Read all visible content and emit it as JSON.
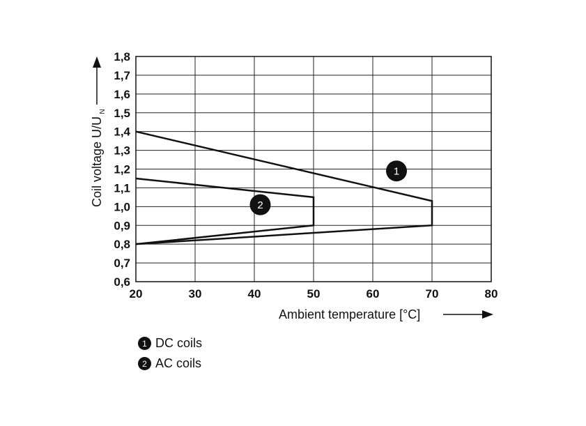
{
  "chart_data": {
    "type": "line",
    "xlabel": "Ambient temperature [°C]",
    "ylabel_main": "Coil voltage U/U",
    "ylabel_sub": "N",
    "xlim": [
      20,
      80
    ],
    "ylim": [
      0.6,
      1.8
    ],
    "x_ticks": [
      20,
      30,
      40,
      50,
      60,
      70,
      80
    ],
    "y_ticks": [
      "0,6",
      "0,7",
      "0,8",
      "0,9",
      "1,0",
      "1,1",
      "1,2",
      "1,3",
      "1,4",
      "1,5",
      "1,6",
      "1,7",
      "1,8"
    ],
    "y_tick_values": [
      0.6,
      0.7,
      0.8,
      0.9,
      1.0,
      1.1,
      1.2,
      1.3,
      1.4,
      1.5,
      1.6,
      1.7,
      1.8
    ],
    "grid": true,
    "series": [
      {
        "name": "DC coils",
        "marker": "1",
        "x": [
          20,
          70,
          70,
          20
        ],
        "y": [
          1.4,
          1.03,
          0.9,
          0.8
        ],
        "label_at": [
          64,
          1.19
        ]
      },
      {
        "name": "AC coils",
        "marker": "2",
        "x": [
          20,
          50,
          50,
          20
        ],
        "y": [
          1.15,
          1.05,
          0.9,
          0.8
        ],
        "label_at": [
          41,
          1.01
        ]
      }
    ]
  },
  "legend": [
    {
      "marker": "1",
      "label": "DC coils"
    },
    {
      "marker": "2",
      "label": "AC coils"
    }
  ],
  "colors": {
    "line": "#111111",
    "grid": "#222222",
    "background": "#ffffff"
  }
}
